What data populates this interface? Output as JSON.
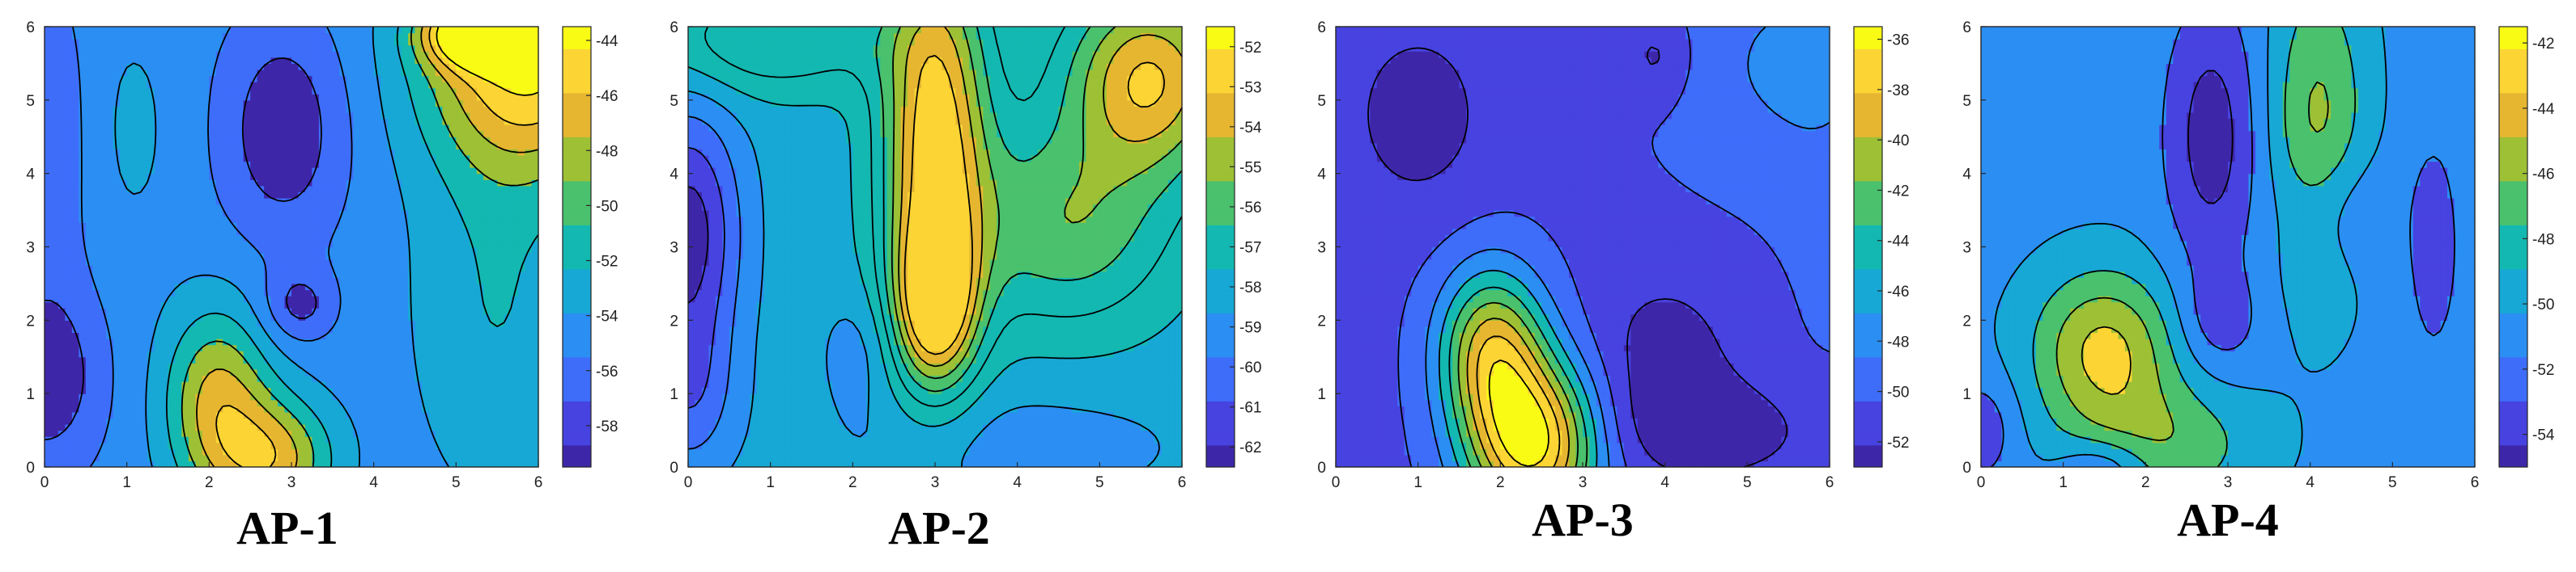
{
  "colormap": [
    "#3e26a8",
    "#4743e0",
    "#3e6dfa",
    "#2b8ef2",
    "#17a8d5",
    "#13b8b1",
    "#4ac16d",
    "#9dc035",
    "#e6b631",
    "#fcd535",
    "#f9fb15"
  ],
  "chart_data": [
    {
      "type": "heatmap",
      "style": "filled-contour",
      "title": "AP-1",
      "xlim": [
        0,
        6
      ],
      "ylim": [
        0,
        6
      ],
      "x_ticks": [
        "0",
        "1",
        "2",
        "3",
        "4",
        "5",
        "6"
      ],
      "y_ticks": [
        "0",
        "1",
        "2",
        "3",
        "4",
        "5",
        "6"
      ],
      "colorbar": {
        "range": [
          -59.5,
          -43.5
        ],
        "ticks": [
          "-44",
          "-46",
          "-48",
          "-50",
          "-52",
          "-54",
          "-56",
          "-58"
        ],
        "tick_values": [
          -44,
          -46,
          -48,
          -50,
          -52,
          -54,
          -56,
          -58
        ]
      },
      "levels": [
        -58,
        -56,
        -54,
        -52,
        -50,
        -48,
        -46,
        -44
      ],
      "base_value": -55,
      "features": [
        {
          "x": 2.9,
          "y": 4.6,
          "v": -59.5,
          "sx": 0.55,
          "sy": 1.1
        },
        {
          "x": 3.1,
          "y": 2.2,
          "v": -58.5,
          "sx": 0.3,
          "sy": 0.35
        },
        {
          "x": 0.0,
          "y": 1.2,
          "v": -59.5,
          "sx": 0.5,
          "sy": 0.9
        },
        {
          "x": 0.1,
          "y": 4.5,
          "v": -57.5,
          "sx": 0.4,
          "sy": 1.5
        },
        {
          "x": 1.0,
          "y": 4.6,
          "v": -53.5,
          "sx": 0.45,
          "sy": 1.2
        },
        {
          "x": 2.1,
          "y": 0.9,
          "v": -47.5,
          "sx": 0.45,
          "sy": 0.9
        },
        {
          "x": 2.8,
          "y": 0.1,
          "v": -47.5,
          "sx": 0.5,
          "sy": 0.6
        },
        {
          "x": 5.9,
          "y": 5.6,
          "v": -43.5,
          "sx": 0.9,
          "sy": 1.1
        },
        {
          "x": 5.2,
          "y": 5.9,
          "v": -44.5,
          "sx": 0.4,
          "sy": 0.3
        },
        {
          "x": 5.5,
          "y": 2.2,
          "v": -52.0,
          "sx": 0.7,
          "sy": 1.8
        }
      ]
    },
    {
      "type": "heatmap",
      "style": "filled-contour",
      "title": "AP-2",
      "xlim": [
        0,
        6
      ],
      "ylim": [
        0,
        6
      ],
      "x_ticks": [
        "0",
        "1",
        "2",
        "3",
        "4",
        "5",
        "6"
      ],
      "y_ticks": [
        "0",
        "1",
        "2",
        "3",
        "4",
        "5",
        "6"
      ],
      "colorbar": {
        "range": [
          -62.5,
          -51.5
        ],
        "ticks": [
          "-52",
          "-53",
          "-54",
          "-55",
          "-56",
          "-57",
          "-58",
          "-59",
          "-60",
          "-61",
          "-62"
        ],
        "tick_values": [
          -52,
          -53,
          -54,
          -55,
          -56,
          -57,
          -58,
          -59,
          -60,
          -61,
          -62
        ]
      },
      "levels": [
        -62,
        -61,
        -60,
        -59,
        -58,
        -57,
        -56,
        -55,
        -54,
        -53
      ],
      "base_value": -58.5,
      "features": [
        {
          "x": 3.0,
          "y": 4.5,
          "v": -52.3,
          "sx": 0.45,
          "sy": 1.8
        },
        {
          "x": 3.0,
          "y": 2.2,
          "v": -53.0,
          "sx": 0.35,
          "sy": 0.8
        },
        {
          "x": 0.0,
          "y": 3.2,
          "v": -62.5,
          "sx": 0.45,
          "sy": 1.2
        },
        {
          "x": 0.0,
          "y": 1.0,
          "v": -60.5,
          "sx": 0.4,
          "sy": 0.8
        },
        {
          "x": 1.0,
          "y": 5.8,
          "v": -56.0,
          "sx": 1.0,
          "sy": 0.5
        },
        {
          "x": 5.6,
          "y": 5.3,
          "v": -53.0,
          "sx": 0.7,
          "sy": 0.9
        },
        {
          "x": 4.6,
          "y": 3.3,
          "v": -55.2,
          "sx": 0.9,
          "sy": 1.0
        },
        {
          "x": 4.0,
          "y": 0.3,
          "v": -59.5,
          "sx": 1.5,
          "sy": 0.6
        },
        {
          "x": 2.1,
          "y": 1.6,
          "v": -59.5,
          "sx": 0.35,
          "sy": 0.6
        }
      ]
    },
    {
      "type": "heatmap",
      "style": "filled-contour",
      "title": "AP-3",
      "xlim": [
        0,
        6
      ],
      "ylim": [
        0,
        6
      ],
      "x_ticks": [
        "0",
        "1",
        "2",
        "3",
        "4",
        "5",
        "6"
      ],
      "y_ticks": [
        "0",
        "1",
        "2",
        "3",
        "4",
        "5",
        "6"
      ],
      "colorbar": {
        "range": [
          -53,
          -35.5
        ],
        "ticks": [
          "-36",
          "-38",
          "-40",
          "-42",
          "-44",
          "-46",
          "-48",
          "-50",
          "-52"
        ],
        "tick_values": [
          -36,
          -38,
          -40,
          -42,
          -44,
          -46,
          -48,
          -50,
          -52
        ]
      },
      "levels": [
        -52,
        -50,
        -48,
        -46,
        -44,
        -42,
        -40,
        -38,
        -36
      ],
      "base_value": -50.5,
      "features": [
        {
          "x": 2.4,
          "y": 0.3,
          "v": -35.8,
          "sx": 0.55,
          "sy": 0.8
        },
        {
          "x": 1.9,
          "y": 1.6,
          "v": -39.5,
          "sx": 0.45,
          "sy": 0.8
        },
        {
          "x": 1.0,
          "y": 4.8,
          "v": -53.0,
          "sx": 0.6,
          "sy": 0.9
        },
        {
          "x": 4.0,
          "y": 1.5,
          "v": -53.0,
          "sx": 0.6,
          "sy": 0.8
        },
        {
          "x": 4.6,
          "y": 0.5,
          "v": -53.0,
          "sx": 1.0,
          "sy": 0.5
        },
        {
          "x": 3.9,
          "y": 5.6,
          "v": -53.0,
          "sx": 0.3,
          "sy": 0.45
        },
        {
          "x": 5.5,
          "y": 5.5,
          "v": -47.8,
          "sx": 1.1,
          "sy": 1.2
        },
        {
          "x": 6.0,
          "y": 3.0,
          "v": -49.8,
          "sx": 0.5,
          "sy": 2.5
        }
      ]
    },
    {
      "type": "heatmap",
      "style": "filled-contour",
      "title": "AP-4",
      "xlim": [
        0,
        6
      ],
      "ylim": [
        0,
        6
      ],
      "x_ticks": [
        "0",
        "1",
        "2",
        "3",
        "4",
        "5",
        "6"
      ],
      "y_ticks": [
        "0",
        "1",
        "2",
        "3",
        "4",
        "5",
        "6"
      ],
      "colorbar": {
        "range": [
          -55,
          -41.5
        ],
        "ticks": [
          "-42",
          "-44",
          "-46",
          "-48",
          "-50",
          "-52",
          "-54"
        ],
        "tick_values": [
          -42,
          -44,
          -46,
          -48,
          -50,
          -52,
          -54
        ]
      },
      "levels": [
        -54,
        -52,
        -50,
        -48,
        -46,
        -44,
        -42
      ],
      "base_value": -50.5,
      "features": [
        {
          "x": 2.8,
          "y": 4.5,
          "v": -55.0,
          "sx": 0.4,
          "sy": 1.3
        },
        {
          "x": 2.9,
          "y": 2.0,
          "v": -53.0,
          "sx": 0.35,
          "sy": 0.5
        },
        {
          "x": 4.3,
          "y": 3.5,
          "v": -53.0,
          "sx": 0.45,
          "sy": 0.6
        },
        {
          "x": 5.5,
          "y": 3.0,
          "v": -53.0,
          "sx": 0.25,
          "sy": 1.2
        },
        {
          "x": 1.5,
          "y": 1.6,
          "v": -43.5,
          "sx": 0.6,
          "sy": 0.75
        },
        {
          "x": 2.2,
          "y": 0.3,
          "v": -46.5,
          "sx": 0.8,
          "sy": 0.6
        },
        {
          "x": 4.1,
          "y": 4.6,
          "v": -45.5,
          "sx": 0.4,
          "sy": 1.5
        },
        {
          "x": 0.0,
          "y": 0.5,
          "v": -53.5,
          "sx": 0.3,
          "sy": 0.5
        },
        {
          "x": 1.5,
          "y": 0.0,
          "v": -54.0,
          "sx": 0.4,
          "sy": 0.3
        }
      ]
    }
  ]
}
